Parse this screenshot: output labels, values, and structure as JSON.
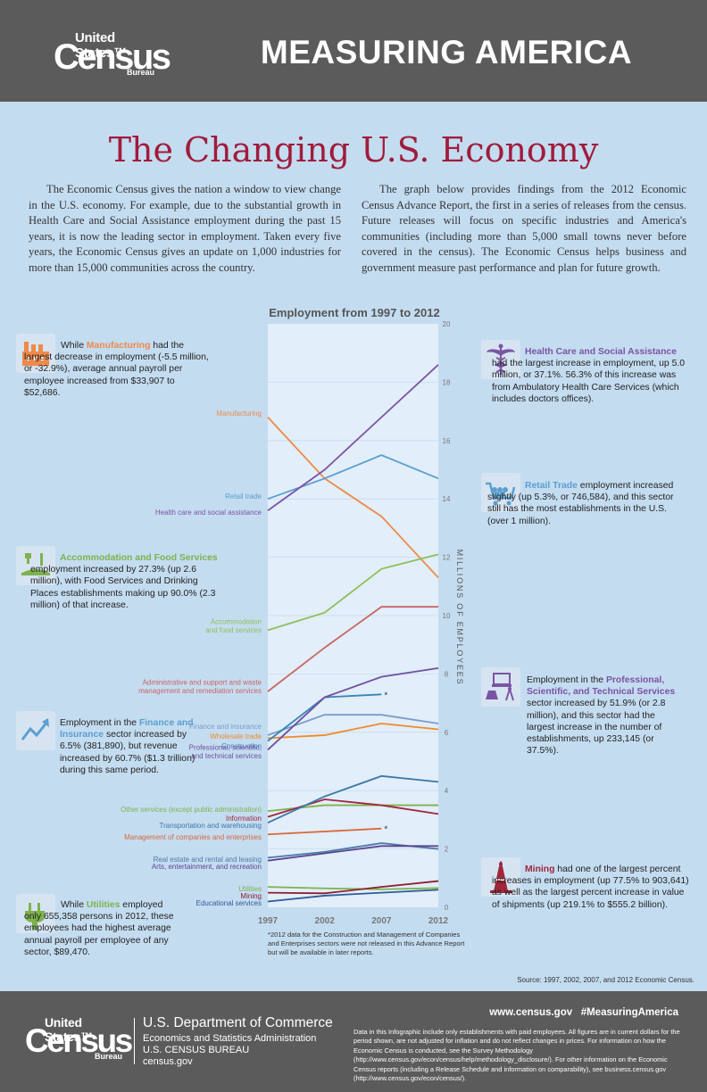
{
  "header": {
    "logo": {
      "line1": "United States™",
      "line2": "Census",
      "line3": "Bureau"
    },
    "title": "MEASURING AMERICA"
  },
  "page_title": "The Changing U.S. Economy",
  "intro": {
    "left": "The Economic Census gives the nation a window to view change in the U.S. economy. For example, due to the substantial growth in Health Care and Social Assistance employment during the past 15 years, it is now the leading sector in employment. Taken every five years, the Economic Census gives an update on 1,000 industries for more than 15,000 communities across the country.",
    "right": "The graph below provides findings from the 2012 Economic Census Advance Report, the first in a series of releases from the census. Future releases will focus on specific industries and America's communities (including more than 5,000 small towns never before covered in the census). The Economic Census helps business and government measure past performance and plan for future growth."
  },
  "callouts": {
    "manufacturing": {
      "pre": "While ",
      "highlight": "Manufacturing",
      "post": " had the largest decrease in employment (-5.5 million, or -32.9%), average annual payroll per employee increased from $33,907 to $52,686.",
      "color": "#ee8a4a"
    },
    "accommodation": {
      "highlight": "Accommodation and Food Services",
      "post": " employment increased by 27.3% (up 2.6 million), with Food Services and Drinking Places establishments making up 90.0% (2.3 million) of that increase.",
      "color": "#7db24d"
    },
    "finance": {
      "pre": "Employment in the ",
      "highlight": "Finance and Insurance",
      "post": " sector increased by 6.5% (381,890), but revenue increased by 60.7% ($1.3 trillion) during this same period.",
      "color": "#5a9fd0"
    },
    "utilities": {
      "pre": "While ",
      "highlight": "Utilities",
      "post": " employed only 655,358 persons in 2012, these employees had the highest average annual payroll per employee of any sector, $89,470.",
      "color": "#7db24d"
    },
    "health": {
      "highlight": "Health Care and Social Assistance",
      "post": " had the largest increase in employment, up 5.0 million, or 37.1%. 56.3% of this increase was from Ambulatory Health Care Services (which includes doctors offices).",
      "color": "#7b54a4"
    },
    "retail": {
      "highlight": "Retail Trade",
      "post": " employment increased slightly (up 5.3%, or 746,584), and this sector still has the most establishments in the U.S. (over 1 million).",
      "color": "#5a9fd0"
    },
    "professional": {
      "pre": "Employment in the ",
      "highlight": "Professional, Scientific, and Technical Services",
      "post": " sector increased by 51.9% (or 2.8 million), and this sector had the largest increase in the number of establishments, up 233,145 (or 37.5%).",
      "color": "#7b54a4"
    },
    "mining": {
      "highlight": "Mining",
      "post": " had one of the largest percent increases in employment (up 77.5% to 903,641) as well as the largest percent increase in value of shipments (up 219.1% to $555.2 billion).",
      "color": "#a0273c"
    }
  },
  "chart_data": {
    "type": "line",
    "title": "Employment from 1997 to 2012",
    "x": [
      1997,
      2002,
      2007,
      2012
    ],
    "xlabel": "",
    "ylabel": "MILLIONS OF EMPLOYEES",
    "ylim": [
      0,
      20
    ],
    "yticks": [
      0,
      2,
      4,
      6,
      8,
      10,
      12,
      14,
      16,
      18,
      20
    ],
    "series": [
      {
        "name": "Manufacturing",
        "label": [
          "Manufacturing"
        ],
        "color": "#ee8a4a",
        "values": [
          16.8,
          14.7,
          13.4,
          11.3
        ]
      },
      {
        "name": "Retail trade",
        "label": [
          "Retail trade"
        ],
        "color": "#5a9fd0",
        "values": [
          14.0,
          14.7,
          15.5,
          14.7
        ]
      },
      {
        "name": "Health care and social assistance",
        "label": [
          "Health care and social assistance"
        ],
        "color": "#7b54a4",
        "values": [
          13.6,
          15.0,
          16.8,
          18.6
        ]
      },
      {
        "name": "Accommodation and food services",
        "label": [
          "Accommodation",
          "and food services"
        ],
        "color": "#8fbf5a",
        "values": [
          9.5,
          10.1,
          11.6,
          12.1
        ]
      },
      {
        "name": "Administrative and support and waste management and remediation services",
        "label": [
          "Administrative and support and waste",
          "management and remediation services"
        ],
        "color": "#c96565",
        "values": [
          7.4,
          8.9,
          10.3,
          10.3
        ]
      },
      {
        "name": "Finance and insurance",
        "label": [
          "Finance and insurance"
        ],
        "color": "#7b9acc",
        "values": [
          5.9,
          6.6,
          6.6,
          6.3
        ]
      },
      {
        "name": "Wholesale trade",
        "label": [
          "Wholesale trade"
        ],
        "color": "#ee8a2a",
        "values": [
          5.8,
          5.9,
          6.3,
          6.1
        ]
      },
      {
        "name": "Construction",
        "label": [
          "Construction"
        ],
        "color": "#3a86b5",
        "values": [
          5.7,
          7.2,
          7.3,
          null
        ]
      },
      {
        "name": "Professional, scientific, and technical services",
        "label": [
          "Professional, scientific,",
          "and technical services"
        ],
        "color": "#6f4fa0",
        "values": [
          5.4,
          7.2,
          7.9,
          8.2
        ]
      },
      {
        "name": "Other services (except public administration)",
        "label": [
          "Other services (except public administration)"
        ],
        "color": "#7db24d",
        "values": [
          3.3,
          3.5,
          3.5,
          3.5
        ]
      },
      {
        "name": "Information",
        "label": [
          "Information"
        ],
        "color": "#a0273c",
        "values": [
          3.1,
          3.7,
          3.5,
          3.2
        ]
      },
      {
        "name": "Transportation and warehousing",
        "label": [
          "Transportation and warehousing"
        ],
        "color": "#3d78a8",
        "values": [
          2.9,
          3.8,
          4.5,
          4.3
        ]
      },
      {
        "name": "Management of companies and enterprises",
        "label": [
          "Management of companies and enterprises"
        ],
        "color": "#d9663a",
        "values": [
          2.5,
          2.6,
          2.7,
          null
        ]
      },
      {
        "name": "Real estate and rental and leasing",
        "label": [
          "Real estate and rental and leasing"
        ],
        "color": "#4b7aa8",
        "values": [
          1.7,
          1.9,
          2.2,
          2.0
        ]
      },
      {
        "name": "Arts, entertainment, and recreation",
        "label": [
          "Arts, entertainment, and recreation"
        ],
        "color": "#5a4590",
        "values": [
          1.6,
          1.85,
          2.1,
          2.1
        ]
      },
      {
        "name": "Utilities",
        "label": [
          "Utilities"
        ],
        "color": "#7db24d",
        "values": [
          0.7,
          0.65,
          0.62,
          0.66
        ]
      },
      {
        "name": "Mining",
        "label": [
          "Mining"
        ],
        "color": "#8b2030",
        "values": [
          0.5,
          0.48,
          0.7,
          0.9
        ]
      },
      {
        "name": "Educational services",
        "label": [
          "Educational services"
        ],
        "color": "#2d5b9a",
        "values": [
          0.2,
          0.4,
          0.5,
          0.6
        ]
      }
    ],
    "annotation_marks": [
      "*",
      "*"
    ],
    "footnote": "*2012 data for the Construction and Management of Companies and Enterprises sectors were not released in this Advance Report but will be available in later reports.",
    "source": "Source: 1997, 2002, 2007, and 2012 Economic Census."
  },
  "footer": {
    "logo": {
      "line1": "United States™",
      "line2": "Census",
      "line3": "Bureau"
    },
    "dept": "U.S. Department of Commerce",
    "admin": "Economics and Statistics Administration",
    "bureau": "U.S. CENSUS BUREAU",
    "site": "census.gov",
    "links": "www.census.gov   #MeasuringAmerica",
    "disclaimer": "Data in this Infographic include only establishments with paid employees. All figures are in current dollars for the period shown, are not adjusted for inflation and do not reflect changes in prices. For information on how the Economic Census is conducted, see the Survey Methodology (http://www.census.gov/econ/census/help/methodology_disclosure/). For other information on the Economic Census reports (including a Release Schedule and information on comparability), see business.census.gov (http://www.census.gov/econ/census/)."
  }
}
